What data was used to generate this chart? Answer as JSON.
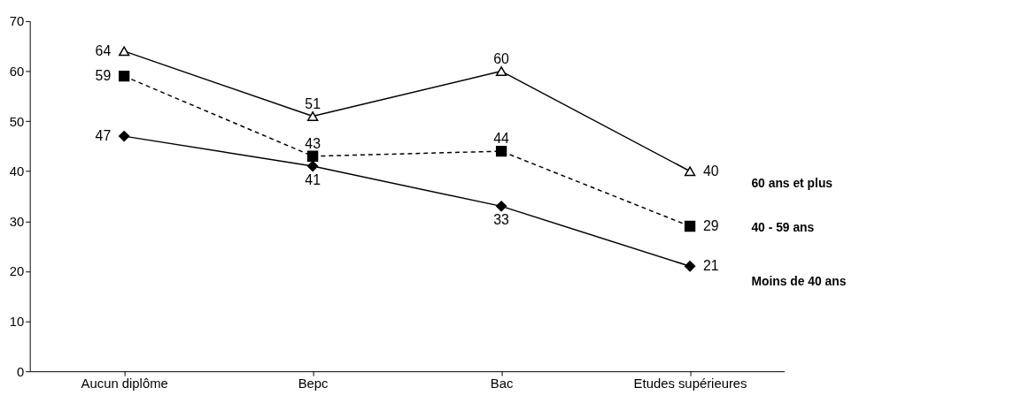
{
  "chart_data": {
    "type": "line",
    "categories": [
      "Aucun diplôme",
      "Bepc",
      "Bac",
      "Etudes supérieures"
    ],
    "series": [
      {
        "name": "60 ans et plus",
        "color": "#000000",
        "values": [
          64,
          51,
          60,
          40
        ],
        "marker": "triangle",
        "line_style": "solid"
      },
      {
        "name": "40 - 59 ans",
        "color": "#000000",
        "values": [
          59,
          43,
          44,
          29
        ],
        "marker": "square",
        "line_style": "dashed"
      },
      {
        "name": "Moins de 40 ans",
        "color": "#000000",
        "values": [
          47,
          41,
          33,
          21
        ],
        "marker": "diamond",
        "line_style": "solid"
      }
    ],
    "ylim": [
      0,
      70
    ],
    "yticks": [
      0,
      10,
      20,
      30,
      40,
      50,
      60,
      70
    ],
    "grid": false,
    "legend": "right",
    "data_labels": true
  }
}
